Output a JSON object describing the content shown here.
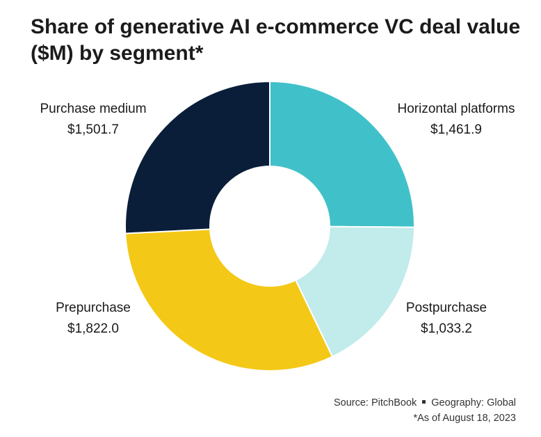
{
  "chart_data": {
    "type": "pie",
    "title": "Share of generative AI e-commerce VC deal value ($M) by segment*",
    "donut": true,
    "slices": [
      {
        "label": "Horizontal platforms",
        "value": 1461.9,
        "value_label": "$1,461.9",
        "color": "#40c1c9"
      },
      {
        "label": "Postpurchase",
        "value": 1033.2,
        "value_label": "$1,033.2",
        "color": "#c2ebeb"
      },
      {
        "label": "Prepurchase",
        "value": 1822.0,
        "value_label": "$1,822.0",
        "color": "#f4c817"
      },
      {
        "label": "Purchase medium",
        "value": 1501.7,
        "value_label": "$1,501.7",
        "color": "#0a1e3a"
      }
    ]
  },
  "footer": {
    "source": "Source: PitchBook",
    "geography": "Geography: Global",
    "note": "*As of August 18, 2023"
  }
}
